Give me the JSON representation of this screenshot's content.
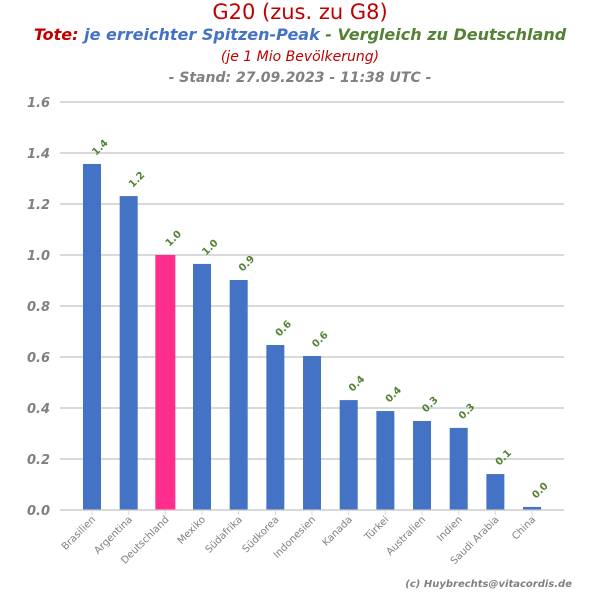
{
  "header": {
    "title": "G20 (zus. zu G8)",
    "subtitle_part1": "Tote:",
    "subtitle_part2": " je erreichter Spitzen-Peak",
    "subtitle_part3": " - Vergleich zu Deutschland",
    "note": "(je 1 Mio Bevölkerung)",
    "stand": "- Stand: 27.09.2023 - 11:38 UTC -"
  },
  "footer": {
    "credit": "(c) Huybrechts@vitacordis.de"
  },
  "colors": {
    "bar_default": "#4472c4",
    "bar_highlight": "#ff2d8e",
    "label_green": "#548235",
    "title_red": "#c00000",
    "grid": "#d9d9d9",
    "axis_text": "#808080"
  },
  "chart_data": {
    "type": "bar",
    "title": "G20 (zus. zu G8)",
    "xlabel": "",
    "ylabel": "",
    "ylim": [
      0,
      1.6
    ],
    "yticks": [
      "0.0",
      "0.2",
      "0.4",
      "0.6",
      "0.8",
      "1.0",
      "1.2",
      "1.4",
      "1.6"
    ],
    "grid": true,
    "legend": "none",
    "highlight_category": "Deutschland",
    "categories": [
      "Brasilien",
      "Argentina",
      "Deutschland",
      "Mexiko",
      "Südafrika",
      "Südkorea",
      "Indonesien",
      "Kanada",
      "Türkei",
      "Australien",
      "Indien",
      "Saudi Arabia",
      "China"
    ],
    "values": [
      1.357,
      1.231,
      1.0,
      0.965,
      0.902,
      0.647,
      0.604,
      0.431,
      0.388,
      0.349,
      0.322,
      0.141,
      0.012
    ],
    "data_labels": [
      "1.4",
      "1.2",
      "1.0",
      "1.0",
      "0.9",
      "0.6",
      "0.6",
      "0.4",
      "0.4",
      "0.3",
      "0.3",
      "0.1",
      "0.0"
    ]
  }
}
